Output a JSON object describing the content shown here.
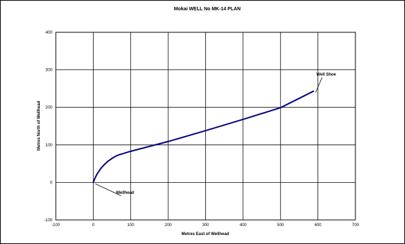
{
  "chart_data": {
    "type": "line",
    "title": "Mokai WELL No MK-14 PLAN",
    "xlabel": "Metres East of Wellhead",
    "ylabel": "Metres North of Wellhead",
    "xlim": [
      -100,
      700
    ],
    "ylim": [
      -100,
      400
    ],
    "xticks": [
      -100,
      0,
      100,
      200,
      300,
      400,
      500,
      600,
      700
    ],
    "yticks": [
      -100,
      0,
      100,
      200,
      300,
      400
    ],
    "grid": true,
    "series": [
      {
        "color": "#000080",
        "x": [
          0,
          5,
          10,
          20,
          30,
          40,
          50,
          60,
          70,
          80,
          90,
          100,
          150,
          200,
          300,
          400,
          500,
          588
        ],
        "y": [
          0,
          12,
          22,
          37,
          48,
          57,
          64,
          70,
          74,
          77,
          80,
          83,
          96,
          109,
          138,
          168,
          199,
          243
        ]
      }
    ],
    "annotations": [
      {
        "text": "Well Shoe",
        "x": 588,
        "y": 243,
        "label_x": 622,
        "label_y": 285
      },
      {
        "text": "Wellhead",
        "x": 0,
        "y": 0,
        "label_x": 85,
        "label_y": -30
      }
    ]
  }
}
